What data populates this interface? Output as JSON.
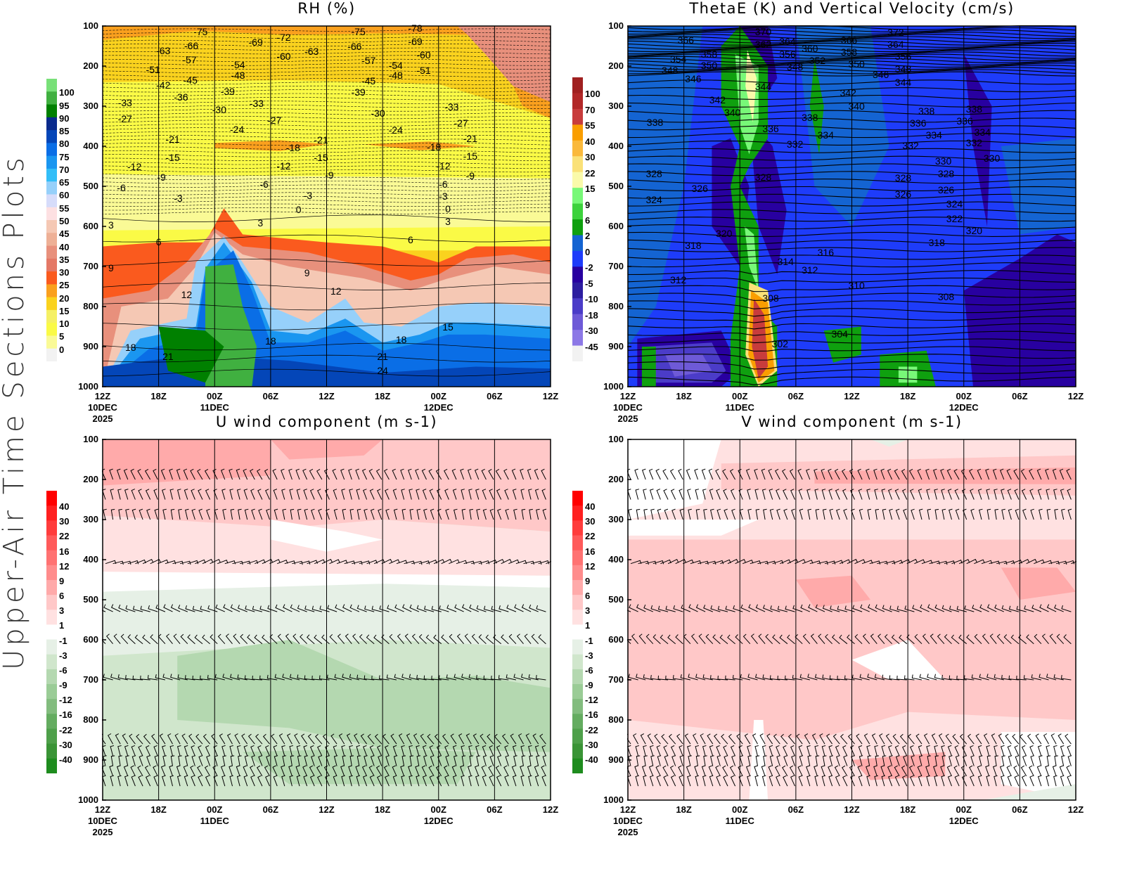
{
  "side_title": "Upper-Air Time Sections Plots",
  "chart_data": [
    {
      "type": "heatmap",
      "title": "RH (%)",
      "ylim": [
        1000,
        100
      ],
      "y_ticks": [
        "100",
        "200",
        "300",
        "400",
        "500",
        "600",
        "700",
        "800",
        "900",
        "1000"
      ],
      "x_ticks": [
        "12Z",
        "18Z",
        "00Z",
        "06Z",
        "12Z",
        "18Z",
        "00Z",
        "06Z",
        "12Z"
      ],
      "x_sublabels": [
        {
          "tick": 0,
          "lines": [
            "10DEC",
            "2025"
          ]
        },
        {
          "tick": 2,
          "lines": [
            "11DEC"
          ]
        },
        {
          "tick": 6,
          "lines": [
            "12DEC"
          ]
        }
      ],
      "colorbar": {
        "labels": [
          "100",
          "95",
          "90",
          "85",
          "80",
          "75",
          "70",
          "65",
          "60",
          "55",
          "50",
          "45",
          "40",
          "35",
          "30",
          "25",
          "20",
          "15",
          "10",
          "5",
          "0"
        ],
        "colors": [
          "#78e078",
          "#40b040",
          "#008000",
          "#0a2a8c",
          "#0446b8",
          "#0a6ee6",
          "#1a96f0",
          "#32bef8",
          "#96d0fa",
          "#d6dcfa",
          "#fde0e2",
          "#f5c8b4",
          "#eeb096",
          "#e8907c",
          "#e47866",
          "#fa5a1e",
          "#faa01e",
          "#fad21e",
          "#f5f064",
          "#fafa46",
          "#fafa96",
          "#f2f2f2"
        ]
      },
      "contour_labels": [
        {
          "t": 10.5,
          "p": 114,
          "v": "-75"
        },
        {
          "t": 9.5,
          "p": 149,
          "v": "-66"
        },
        {
          "t": 6.5,
          "p": 161,
          "v": "-63"
        },
        {
          "t": 9.3,
          "p": 184,
          "v": "-57"
        },
        {
          "t": 5.4,
          "p": 209,
          "v": "-51"
        },
        {
          "t": 16.4,
          "p": 140,
          "v": "-69"
        },
        {
          "t": 19.4,
          "p": 128,
          "v": "-72"
        },
        {
          "t": 19.4,
          "p": 175,
          "v": "-60"
        },
        {
          "t": 22.4,
          "p": 163,
          "v": "-63"
        },
        {
          "t": 14.5,
          "p": 196,
          "v": "-54"
        },
        {
          "t": 14.5,
          "p": 223,
          "v": "-48"
        },
        {
          "t": 9.4,
          "p": 235,
          "v": "-45"
        },
        {
          "t": 6.5,
          "p": 247,
          "v": "-42"
        },
        {
          "t": 8.4,
          "p": 277,
          "v": "-36"
        },
        {
          "t": 13.4,
          "p": 263,
          "v": "-39"
        },
        {
          "t": 2.4,
          "p": 291,
          "v": "-33"
        },
        {
          "t": 2.4,
          "p": 332,
          "v": "-27"
        },
        {
          "t": 12.5,
          "p": 309,
          "v": "-30"
        },
        {
          "t": 16.5,
          "p": 293,
          "v": "-33"
        },
        {
          "t": 14.4,
          "p": 358,
          "v": "-24"
        },
        {
          "t": 18.4,
          "p": 335,
          "v": "-27"
        },
        {
          "t": 7.5,
          "p": 382,
          "v": "-21"
        },
        {
          "t": 7.5,
          "p": 428,
          "v": "-15"
        },
        {
          "t": 20.4,
          "p": 404,
          "v": "-18"
        },
        {
          "t": 23.4,
          "p": 384,
          "v": "-21"
        },
        {
          "t": 23.4,
          "p": 428,
          "v": "-15"
        },
        {
          "t": 3.4,
          "p": 451,
          "v": "-12"
        },
        {
          "t": 6.3,
          "p": 477,
          "v": "-9"
        },
        {
          "t": 19.4,
          "p": 449,
          "v": "-12"
        },
        {
          "t": 24.3,
          "p": 472,
          "v": "-9"
        },
        {
          "t": 2.0,
          "p": 504,
          "v": "-6"
        },
        {
          "t": 17.3,
          "p": 495,
          "v": "-6"
        },
        {
          "t": 8.1,
          "p": 530,
          "v": "-3"
        },
        {
          "t": 22.0,
          "p": 523,
          "v": "-3"
        },
        {
          "t": 21.0,
          "p": 558,
          "v": "0"
        },
        {
          "t": 0.9,
          "p": 596,
          "v": "3"
        },
        {
          "t": 16.9,
          "p": 591,
          "v": "3"
        },
        {
          "t": 6.0,
          "p": 639,
          "v": "6"
        },
        {
          "t": 33.0,
          "p": 633,
          "v": "6"
        },
        {
          "t": 0.9,
          "p": 704,
          "v": "9"
        },
        {
          "t": 21.9,
          "p": 716,
          "v": "9"
        },
        {
          "t": 9.0,
          "p": 770,
          "v": "12"
        },
        {
          "t": 25.0,
          "p": 761,
          "v": "12"
        },
        {
          "t": 37.0,
          "p": 851,
          "v": "15"
        },
        {
          "t": 3.0,
          "p": 902,
          "v": "18"
        },
        {
          "t": 18.0,
          "p": 886,
          "v": "18"
        },
        {
          "t": 32.0,
          "p": 882,
          "v": "18"
        },
        {
          "t": 7.0,
          "p": 925,
          "v": "21"
        },
        {
          "t": 30.0,
          "p": 925,
          "v": "21"
        },
        {
          "t": 30.0,
          "p": 960,
          "v": "24"
        },
        {
          "t": 27.4,
          "p": 114,
          "v": "-75"
        },
        {
          "t": 27.0,
          "p": 151,
          "v": "-66"
        },
        {
          "t": 33.5,
          "p": 138,
          "v": "-69"
        },
        {
          "t": 33.5,
          "p": 105,
          "v": "-78"
        },
        {
          "t": 28.5,
          "p": 186,
          "v": "-57"
        },
        {
          "t": 31.4,
          "p": 198,
          "v": "-54"
        },
        {
          "t": 31.4,
          "p": 223,
          "v": "-48"
        },
        {
          "t": 34.4,
          "p": 172,
          "v": "-60"
        },
        {
          "t": 34.4,
          "p": 211,
          "v": "-51"
        },
        {
          "t": 28.5,
          "p": 237,
          "v": "-45"
        },
        {
          "t": 27.4,
          "p": 265,
          "v": "-39"
        },
        {
          "t": 29.5,
          "p": 318,
          "v": "-30"
        },
        {
          "t": 31.4,
          "p": 360,
          "v": "-24"
        },
        {
          "t": 37.4,
          "p": 302,
          "v": "-33"
        },
        {
          "t": 38.4,
          "p": 342,
          "v": "-27"
        },
        {
          "t": 39.4,
          "p": 381,
          "v": "-21"
        },
        {
          "t": 39.4,
          "p": 425,
          "v": "-15"
        },
        {
          "t": 35.5,
          "p": 402,
          "v": "-18"
        },
        {
          "t": 36.5,
          "p": 449,
          "v": "-12"
        },
        {
          "t": 39.4,
          "p": 474,
          "v": "-9"
        },
        {
          "t": 36.5,
          "p": 495,
          "v": "-6"
        },
        {
          "t": 36.5,
          "p": 524,
          "v": "-3"
        },
        {
          "t": 37.0,
          "p": 556,
          "v": "0"
        },
        {
          "t": 37.0,
          "p": 588,
          "v": "3"
        }
      ]
    },
    {
      "type": "heatmap",
      "title": "ThetaE (K) and Vertical Velocity (cm/s)",
      "ylim": [
        1000,
        100
      ],
      "y_ticks": [],
      "x_ticks": [
        "12Z",
        "18Z",
        "00Z",
        "06Z",
        "12Z",
        "18Z",
        "00Z",
        "06Z",
        "12Z"
      ],
      "x_sublabels": [
        {
          "tick": 0,
          "lines": [
            "10DEC",
            "2025"
          ]
        },
        {
          "tick": 2,
          "lines": [
            "11DEC"
          ]
        },
        {
          "tick": 6,
          "lines": [
            "12DEC"
          ]
        }
      ],
      "colorbar": {
        "labels": [
          "100",
          "70",
          "55",
          "40",
          "30",
          "22",
          "15",
          "9",
          "6",
          "2",
          "0",
          "-2",
          "-5",
          "-10",
          "-18",
          "-30",
          "-45"
        ],
        "colors": [
          "#a02020",
          "#b22828",
          "#c83c3c",
          "#fa9e00",
          "#fab93c",
          "#fae178",
          "#fafaaa",
          "#78f878",
          "#3cd23c",
          "#0fa00f",
          "#1464d2",
          "#1e3cfa",
          "#2800a0",
          "#2d1ea0",
          "#4b3cc8",
          "#6e5ad7",
          "#8c78e6",
          "#f2f2f2"
        ]
      },
      "contour_labels": [
        {
          "t": 14.5,
          "p": 114,
          "v": "370"
        },
        {
          "t": 6.2,
          "p": 135,
          "v": "366"
        },
        {
          "t": 14.5,
          "p": 146,
          "v": "362"
        },
        {
          "t": 17.1,
          "p": 139,
          "v": "364"
        },
        {
          "t": 23.7,
          "p": 135,
          "v": "366"
        },
        {
          "t": 28.7,
          "p": 116,
          "v": "372"
        },
        {
          "t": 28.7,
          "p": 146,
          "v": "364"
        },
        {
          "t": 5.4,
          "p": 182,
          "v": "354"
        },
        {
          "t": 8.7,
          "p": 170,
          "v": "358"
        },
        {
          "t": 8.7,
          "p": 198,
          "v": "350"
        },
        {
          "t": 4.5,
          "p": 210,
          "v": "348"
        },
        {
          "t": 7.0,
          "p": 232,
          "v": "346"
        },
        {
          "t": 17.1,
          "p": 170,
          "v": "356"
        },
        {
          "t": 19.5,
          "p": 156,
          "v": "360"
        },
        {
          "t": 20.3,
          "p": 186,
          "v": "352"
        },
        {
          "t": 17.9,
          "p": 202,
          "v": "348"
        },
        {
          "t": 23.7,
          "p": 165,
          "v": "358"
        },
        {
          "t": 24.5,
          "p": 195,
          "v": "350"
        },
        {
          "t": 27.1,
          "p": 221,
          "v": "346"
        },
        {
          "t": 29.5,
          "p": 175,
          "v": "356"
        },
        {
          "t": 29.5,
          "p": 207,
          "v": "348"
        },
        {
          "t": 29.5,
          "p": 240,
          "v": "344"
        },
        {
          "t": 14.5,
          "p": 251,
          "v": "344"
        },
        {
          "t": 9.6,
          "p": 284,
          "v": "342"
        },
        {
          "t": 11.2,
          "p": 316,
          "v": "340"
        },
        {
          "t": 23.6,
          "p": 267,
          "v": "342"
        },
        {
          "t": 24.5,
          "p": 300,
          "v": "340"
        },
        {
          "t": 2.9,
          "p": 340,
          "v": "338"
        },
        {
          "t": 19.5,
          "p": 328,
          "v": "338"
        },
        {
          "t": 15.3,
          "p": 356,
          "v": "336"
        },
        {
          "t": 21.2,
          "p": 372,
          "v": "334"
        },
        {
          "t": 17.9,
          "p": 395,
          "v": "332"
        },
        {
          "t": 32.0,
          "p": 312,
          "v": "338"
        },
        {
          "t": 31.1,
          "p": 342,
          "v": "336"
        },
        {
          "t": 32.8,
          "p": 372,
          "v": "334"
        },
        {
          "t": 30.3,
          "p": 398,
          "v": "332"
        },
        {
          "t": 33.8,
          "p": 437,
          "v": "330"
        },
        {
          "t": 2.8,
          "p": 468,
          "v": "328"
        },
        {
          "t": 14.5,
          "p": 477,
          "v": "328"
        },
        {
          "t": 29.5,
          "p": 479,
          "v": "328"
        },
        {
          "t": 7.7,
          "p": 505,
          "v": "326"
        },
        {
          "t": 29.5,
          "p": 519,
          "v": "326"
        },
        {
          "t": 2.8,
          "p": 533,
          "v": "324"
        },
        {
          "t": 37.1,
          "p": 307,
          "v": "338"
        },
        {
          "t": 36.1,
          "p": 337,
          "v": "336"
        },
        {
          "t": 38.0,
          "p": 365,
          "v": "334"
        },
        {
          "t": 37.1,
          "p": 391,
          "v": "332"
        },
        {
          "t": 39.0,
          "p": 430,
          "v": "330"
        },
        {
          "t": 34.1,
          "p": 468,
          "v": "328"
        },
        {
          "t": 34.1,
          "p": 509,
          "v": "326"
        },
        {
          "t": 35.0,
          "p": 544,
          "v": "324"
        },
        {
          "t": 35.0,
          "p": 581,
          "v": "322"
        },
        {
          "t": 37.1,
          "p": 611,
          "v": "320"
        },
        {
          "t": 10.3,
          "p": 618,
          "v": "320"
        },
        {
          "t": 7.0,
          "p": 647,
          "v": "318"
        },
        {
          "t": 21.2,
          "p": 665,
          "v": "316"
        },
        {
          "t": 16.9,
          "p": 688,
          "v": "314"
        },
        {
          "t": 19.5,
          "p": 709,
          "v": "312"
        },
        {
          "t": 5.4,
          "p": 733,
          "v": "312"
        },
        {
          "t": 24.5,
          "p": 747,
          "v": "310"
        },
        {
          "t": 15.3,
          "p": 779,
          "v": "308"
        },
        {
          "t": 34.1,
          "p": 775,
          "v": "308"
        },
        {
          "t": 22.7,
          "p": 868,
          "v": "304"
        },
        {
          "t": 16.3,
          "p": 893,
          "v": "302"
        },
        {
          "t": 33.1,
          "p": 640,
          "v": "318"
        }
      ]
    },
    {
      "type": "heatmap",
      "title": "U wind component (m s-1)",
      "ylim": [
        1000,
        100
      ],
      "y_ticks": [
        "100",
        "200",
        "300",
        "400",
        "500",
        "600",
        "700",
        "800",
        "900",
        "1000"
      ],
      "x_ticks": [
        "12Z",
        "18Z",
        "00Z",
        "06Z",
        "12Z",
        "18Z",
        "00Z",
        "06Z",
        "12Z"
      ],
      "x_sublabels": [
        {
          "tick": 0,
          "lines": [
            "10DEC",
            "2025"
          ]
        },
        {
          "tick": 2,
          "lines": [
            "11DEC"
          ]
        },
        {
          "tick": 6,
          "lines": [
            "12DEC"
          ]
        }
      ],
      "colorbar": {
        "labels": [
          "40",
          "30",
          "22",
          "16",
          "12",
          "9",
          "6",
          "3",
          "1",
          "-1",
          "-3",
          "-6",
          "-9",
          "-12",
          "-16",
          "-22",
          "-30",
          "-40"
        ],
        "colors": [
          "#ff0000",
          "#ff2020",
          "#ff3c3c",
          "#ff5a5a",
          "#ff7272",
          "#ff8c8c",
          "#ffaaaa",
          "#ffc8c8",
          "#ffe1e1",
          "#ffffff",
          "#e6f0e6",
          "#d0e6cc",
          "#b4d8b0",
          "#9acc96",
          "#82bc7e",
          "#64ac60",
          "#4ea04a",
          "#3a9436",
          "#1e8c1e"
        ]
      },
      "contour_labels": []
    },
    {
      "type": "heatmap",
      "title": "V wind component (m s-1)",
      "ylim": [
        1000,
        100
      ],
      "y_ticks": [],
      "x_ticks": [
        "12Z",
        "18Z",
        "00Z",
        "06Z",
        "12Z",
        "18Z",
        "00Z",
        "06Z",
        "12Z"
      ],
      "x_sublabels": [
        {
          "tick": 0,
          "lines": [
            "10DEC",
            "2025"
          ]
        },
        {
          "tick": 2,
          "lines": [
            "11DEC"
          ]
        },
        {
          "tick": 6,
          "lines": [
            "12DEC"
          ]
        }
      ],
      "colorbar": {
        "labels": [
          "40",
          "30",
          "22",
          "16",
          "12",
          "9",
          "6",
          "3",
          "1",
          "-1",
          "-3",
          "-6",
          "-9",
          "-12",
          "-16",
          "-22",
          "-30",
          "-40"
        ],
        "colors": [
          "#ff0000",
          "#ff2020",
          "#ff3c3c",
          "#ff5a5a",
          "#ff7272",
          "#ff8c8c",
          "#ffaaaa",
          "#ffc8c8",
          "#ffe1e1",
          "#ffffff",
          "#e6f0e6",
          "#d0e6cc",
          "#b4d8b0",
          "#9acc96",
          "#82bc7e",
          "#64ac60",
          "#4ea04a",
          "#3a9436",
          "#1e8c1e"
        ]
      },
      "contour_labels": []
    }
  ]
}
